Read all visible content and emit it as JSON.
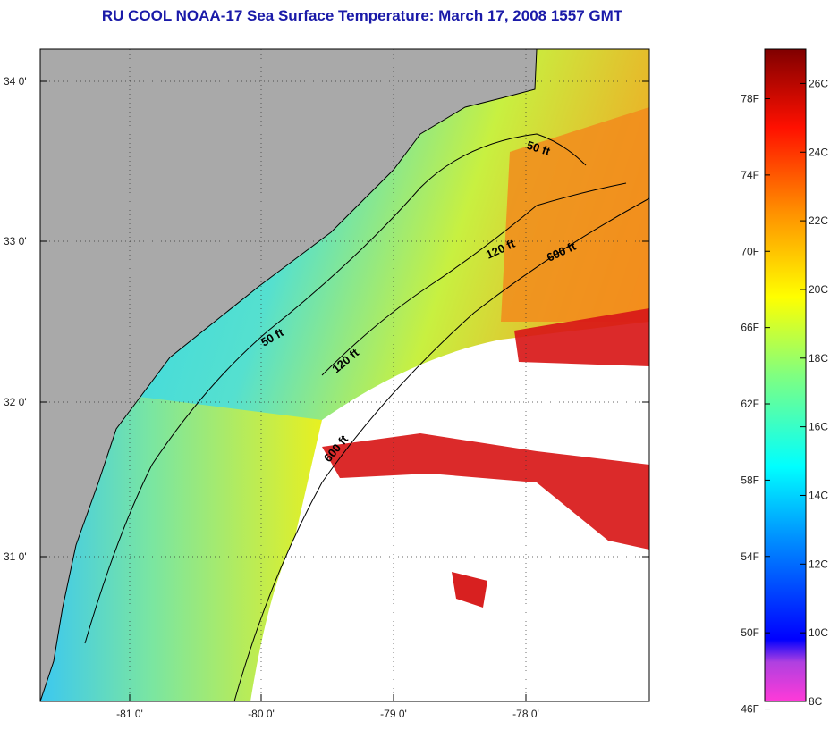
{
  "title": "RU COOL  NOAA-17  Sea Surface Temperature:  March 17, 2008 1557 GMT",
  "map": {
    "lat_labels": [
      "34 0'",
      "33 0'",
      "32 0'",
      "31 0'"
    ],
    "lon_labels": [
      "-81 0'",
      "-80 0'",
      "-79 0'",
      "-78 0'"
    ],
    "isobaths": [
      "50 ft",
      "120 ft",
      "600 ft"
    ]
  },
  "colorbar": {
    "fahrenheit": [
      "78F",
      "74F",
      "70F",
      "66F",
      "62F",
      "58F",
      "54F",
      "50F",
      "46F"
    ],
    "celsius": [
      "26C",
      "24C",
      "22C",
      "20C",
      "18C",
      "16C",
      "14C",
      "12C",
      "10C",
      "8C"
    ],
    "range_c": [
      8,
      27
    ]
  },
  "colors": {
    "land": "#a9a9a9",
    "cloud": "#ffffff",
    "title": "#1a1aa8"
  }
}
